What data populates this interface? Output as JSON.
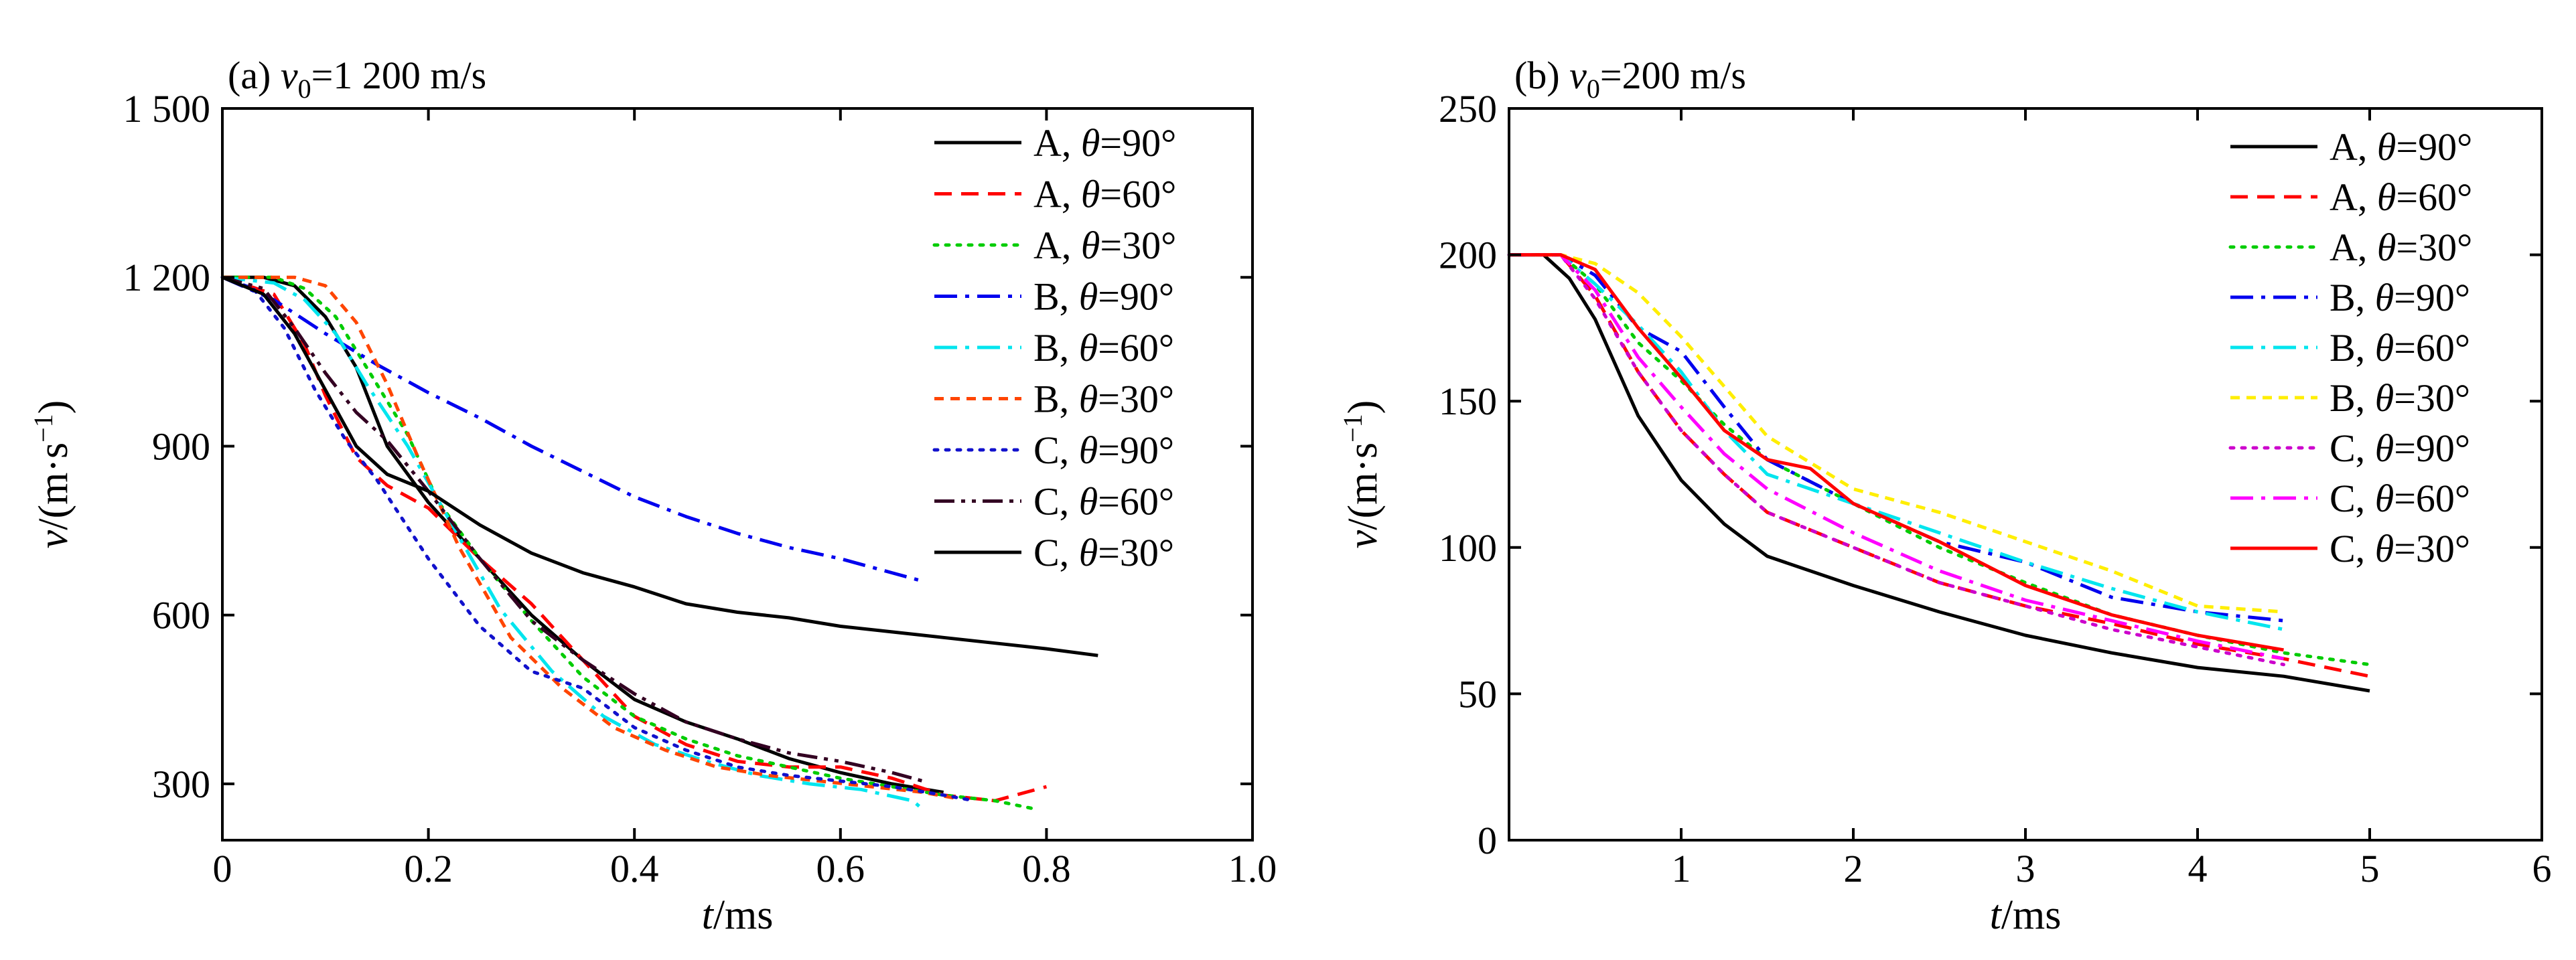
{
  "chart_data": [
    {
      "type": "line",
      "title": {
        "prefix": "(a) ",
        "var": "v",
        "sub": "0",
        "rest": "=1 200 m/s"
      },
      "xlabel": {
        "var": "t",
        "rest": "/ms"
      },
      "ylabel": {
        "var": "v",
        "rest": "/(m·s",
        "sup": "−1",
        "close": ")"
      },
      "xlim": [
        0,
        1.0
      ],
      "ylim": [
        200,
        1500
      ],
      "xticks": [
        0,
        0.2,
        0.4,
        0.6,
        0.8,
        1.0
      ],
      "xtick_labels": [
        "0",
        "0.2",
        "0.4",
        "0.6",
        "0.8",
        "1.0"
      ],
      "yticks": [
        300,
        600,
        900,
        1200,
        1500
      ],
      "ytick_labels": [
        "300",
        "600",
        "900",
        "1 200",
        "1 500"
      ],
      "legend_position": "top-right",
      "series": [
        {
          "name": "A,  θ=90°",
          "color": "#000000",
          "dash": "solid",
          "x": [
            0,
            0.04,
            0.07,
            0.1,
            0.13,
            0.16,
            0.2,
            0.25,
            0.3,
            0.35,
            0.4,
            0.45,
            0.5,
            0.55,
            0.6,
            0.65,
            0.7
          ],
          "y": [
            1200,
            1200,
            1185,
            1130,
            1040,
            900,
            800,
            700,
            600,
            520,
            450,
            410,
            380,
            345,
            320,
            300,
            285
          ]
        },
        {
          "name": "A,  θ=60°",
          "color": "#ff0000",
          "dash": "dashed",
          "x": [
            0,
            0.05,
            0.08,
            0.1,
            0.13,
            0.16,
            0.2,
            0.25,
            0.3,
            0.35,
            0.4,
            0.45,
            0.5,
            0.55,
            0.6,
            0.65,
            0.7,
            0.75,
            0.8
          ],
          "y": [
            1200,
            1170,
            1080,
            990,
            880,
            830,
            790,
            700,
            620,
            520,
            420,
            370,
            340,
            330,
            330,
            310,
            280,
            270,
            295
          ]
        },
        {
          "name": "A,  θ=30°",
          "color": "#00cc00",
          "dash": "dotted",
          "x": [
            0,
            0.05,
            0.08,
            0.11,
            0.14,
            0.18,
            0.21,
            0.25,
            0.3,
            0.35,
            0.4,
            0.45,
            0.5,
            0.55,
            0.6,
            0.65,
            0.7,
            0.75,
            0.79
          ],
          "y": [
            1200,
            1200,
            1180,
            1130,
            1040,
            920,
            800,
            700,
            590,
            490,
            420,
            380,
            350,
            330,
            310,
            295,
            280,
            270,
            255
          ]
        },
        {
          "name": "B,  θ=90°",
          "color": "#0000ee",
          "dash": "dashdot",
          "x": [
            0,
            0.05,
            0.1,
            0.15,
            0.2,
            0.25,
            0.3,
            0.35,
            0.4,
            0.45,
            0.5,
            0.55,
            0.6,
            0.65,
            0.68
          ],
          "y": [
            1200,
            1160,
            1100,
            1045,
            995,
            950,
            900,
            855,
            810,
            775,
            745,
            720,
            700,
            675,
            660
          ]
        },
        {
          "name": "B,  θ=60°",
          "color": "#00e5ee",
          "dash": "dashdot",
          "x": [
            0,
            0.05,
            0.08,
            0.11,
            0.14,
            0.18,
            0.22,
            0.27,
            0.32,
            0.37,
            0.42,
            0.47,
            0.52,
            0.57,
            0.62,
            0.67,
            0.68
          ],
          "y": [
            1200,
            1190,
            1160,
            1100,
            1010,
            900,
            770,
            610,
            500,
            420,
            370,
            340,
            315,
            300,
            290,
            270,
            255
          ]
        },
        {
          "name": "B,  θ=30°",
          "color": "#ff4500",
          "dash": "shortdash",
          "x": [
            0,
            0.04,
            0.07,
            0.1,
            0.13,
            0.16,
            0.19,
            0.23,
            0.28,
            0.33,
            0.38,
            0.43,
            0.48,
            0.53,
            0.58,
            0.63,
            0.68,
            0.71
          ],
          "y": [
            1200,
            1200,
            1200,
            1185,
            1120,
            1010,
            880,
            720,
            560,
            470,
            400,
            360,
            330,
            315,
            305,
            295,
            285,
            275
          ]
        },
        {
          "name": "C,  θ=90°",
          "color": "#1111cc",
          "dash": "dotted",
          "x": [
            0,
            0.03,
            0.06,
            0.09,
            0.12,
            0.15,
            0.2,
            0.25,
            0.3,
            0.35,
            0.4,
            0.45,
            0.5,
            0.55,
            0.6,
            0.65,
            0.7,
            0.73
          ],
          "y": [
            1200,
            1180,
            1110,
            1000,
            910,
            840,
            700,
            580,
            500,
            470,
            400,
            360,
            330,
            315,
            305,
            295,
            280,
            270
          ]
        },
        {
          "name": "C,  θ=60°",
          "color": "#330022",
          "dash": "dashdotdot",
          "x": [
            0,
            0.04,
            0.07,
            0.1,
            0.13,
            0.16,
            0.2,
            0.25,
            0.3,
            0.35,
            0.4,
            0.45,
            0.5,
            0.55,
            0.6,
            0.65,
            0.68
          ],
          "y": [
            1200,
            1180,
            1110,
            1030,
            960,
            910,
            820,
            700,
            590,
            520,
            460,
            410,
            380,
            355,
            340,
            320,
            305
          ]
        },
        {
          "name": "C,  θ=30°",
          "color": "#000000",
          "dash": "solid",
          "x": [
            0,
            0.04,
            0.07,
            0.1,
            0.13,
            0.16,
            0.2,
            0.25,
            0.3,
            0.35,
            0.4,
            0.45,
            0.5,
            0.55,
            0.6,
            0.65,
            0.7,
            0.75,
            0.8,
            0.85
          ],
          "y": [
            1200,
            1170,
            1100,
            1000,
            900,
            850,
            820,
            760,
            710,
            675,
            650,
            620,
            605,
            595,
            580,
            570,
            560,
            550,
            540,
            528
          ]
        }
      ]
    },
    {
      "type": "line",
      "title": {
        "prefix": "(b) ",
        "var": "v",
        "sub": "0",
        "rest": "=200 m/s"
      },
      "xlabel": {
        "var": "t",
        "rest": "/ms"
      },
      "ylabel": {
        "var": "v",
        "rest": "/(m·s",
        "sup": "−1",
        "close": ")"
      },
      "xlim": [
        0,
        6
      ],
      "ylim": [
        0,
        250
      ],
      "xticks": [
        1,
        2,
        3,
        4,
        5,
        6
      ],
      "xtick_labels": [
        "1",
        "2",
        "3",
        "4",
        "5",
        "6"
      ],
      "yticks": [
        0,
        50,
        100,
        150,
        200,
        250
      ],
      "ytick_labels": [
        "0",
        "50",
        "100",
        "150",
        "200",
        "250"
      ],
      "legend_position": "top-right",
      "series": [
        {
          "name": "A,  θ=90°",
          "color": "#000000",
          "dash": "solid",
          "x": [
            0,
            0.2,
            0.35,
            0.5,
            0.75,
            1.0,
            1.25,
            1.5,
            2.0,
            2.5,
            3.0,
            3.5,
            4.0,
            4.5,
            5.0
          ],
          "y": [
            200,
            200,
            192,
            178,
            145,
            123,
            108,
            97,
            87,
            78,
            70,
            64,
            59,
            56,
            51
          ]
        },
        {
          "name": "A,  θ=60°",
          "color": "#ff0000",
          "dash": "dashed",
          "x": [
            0,
            0.3,
            0.5,
            0.75,
            1.0,
            1.25,
            1.5,
            2.0,
            2.5,
            3.0,
            3.5,
            4.0,
            4.5,
            5.0
          ],
          "y": [
            200,
            200,
            186,
            160,
            140,
            125,
            112,
            100,
            88,
            80,
            74,
            67,
            62,
            56
          ]
        },
        {
          "name": "A,  θ=30°",
          "color": "#00cc00",
          "dash": "dotted",
          "x": [
            0,
            0.3,
            0.5,
            0.75,
            1.0,
            1.25,
            1.5,
            2.0,
            2.5,
            3.0,
            3.5,
            4.0,
            4.5,
            5.0
          ],
          "y": [
            200,
            200,
            190,
            170,
            157,
            142,
            130,
            115,
            100,
            88,
            77,
            70,
            64,
            60
          ]
        },
        {
          "name": "B,  θ=90°",
          "color": "#0000ee",
          "dash": "dashdot",
          "x": [
            0,
            0.3,
            0.5,
            0.75,
            1.0,
            1.25,
            1.5,
            2.0,
            2.5,
            3.0,
            3.5,
            4.0,
            4.5
          ],
          "y": [
            200,
            200,
            193,
            175,
            167,
            148,
            130,
            115,
            102,
            95,
            83,
            78,
            75
          ]
        },
        {
          "name": "B,  θ=60°",
          "color": "#00e5ee",
          "dash": "dashdot",
          "x": [
            0,
            0.3,
            0.5,
            0.75,
            1.0,
            1.25,
            1.5,
            2.0,
            2.5,
            3.0,
            3.5,
            4.0,
            4.5
          ],
          "y": [
            200,
            200,
            190,
            176,
            160,
            140,
            125,
            115,
            105,
            95,
            86,
            78,
            72
          ]
        },
        {
          "name": "B,  θ=30°",
          "color": "#ffee00",
          "dash": "shortdash",
          "x": [
            0,
            0.3,
            0.5,
            0.75,
            1.0,
            1.25,
            1.5,
            2.0,
            2.5,
            3.0,
            3.5,
            4.0,
            4.5
          ],
          "y": [
            200,
            200,
            197,
            187,
            172,
            155,
            138,
            120,
            112,
            102,
            92,
            80,
            78
          ]
        },
        {
          "name": "C,  θ=90°",
          "color": "#cc00cc",
          "dash": "dotted",
          "x": [
            0,
            0.3,
            0.5,
            0.75,
            1.0,
            1.25,
            1.5,
            2.0,
            2.5,
            3.0,
            3.5,
            4.0,
            4.5
          ],
          "y": [
            200,
            200,
            185,
            160,
            140,
            125,
            112,
            100,
            88,
            80,
            72,
            66,
            60
          ]
        },
        {
          "name": "C,  θ=60°",
          "color": "#ff00ff",
          "dash": "dashdot",
          "x": [
            0,
            0.3,
            0.5,
            0.75,
            1.0,
            1.25,
            1.5,
            2.0,
            2.5,
            3.0,
            3.5,
            4.0,
            4.5
          ],
          "y": [
            200,
            200,
            188,
            165,
            148,
            132,
            120,
            105,
            92,
            82,
            75,
            68,
            62
          ]
        },
        {
          "name": "C,  θ=30°",
          "color": "#ff0000",
          "dash": "solid",
          "x": [
            0,
            0.3,
            0.5,
            0.75,
            1.0,
            1.25,
            1.5,
            1.75,
            2.0,
            2.5,
            3.0,
            3.5,
            4.0,
            4.5
          ],
          "y": [
            200,
            200,
            195,
            175,
            158,
            140,
            130,
            127,
            115,
            102,
            87,
            77,
            70,
            65
          ]
        }
      ]
    }
  ]
}
